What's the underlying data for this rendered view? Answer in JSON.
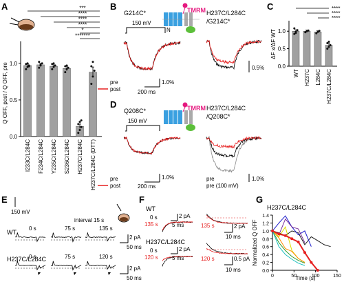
{
  "panels": {
    "A": {
      "label": "A",
      "ylabel": "Q OFF, post / Q OFF, pre",
      "yticks": [
        "0.0",
        "0.5",
        "1.0"
      ],
      "sig": [
        "***",
        "****",
        "****",
        "****",
        "*",
        "*******"
      ]
    },
    "B": {
      "label": "B",
      "left_title": "G214C*",
      "right_title_1": "H237C/L284C",
      "right_title_2": "/G214C*",
      "voltage": "150 mV",
      "dye": "TMRM",
      "n_label": "N",
      "pre": "pre",
      "post": "post",
      "time_scale": "200 ms",
      "scale_left": "1.0%",
      "scale_right": "0.5%"
    },
    "C": {
      "label": "C",
      "ylabel": "ΔF x/ΔF WT",
      "yticks": [
        "0.0",
        "0.5",
        "1.0"
      ],
      "sig": [
        "****",
        "****",
        "****"
      ]
    },
    "D": {
      "label": "D",
      "left_title": "Q208C*",
      "right_title_1": "H237C/L284C",
      "right_title_2": "/Q208C*",
      "voltage": "150 mV",
      "dye": "TMRM",
      "pre": "pre",
      "post": "post",
      "post_right": "pre (100 mV)",
      "time_scale": "200 ms",
      "scale_left": "1.0%",
      "scale_right": "1.0%"
    },
    "E": {
      "label": "E",
      "voltage": "150 mV",
      "interval": "interval 15 s",
      "wt": "WT",
      "mut": "H237C/L284C",
      "wt_times": [
        "0 s",
        "75 s",
        "135 s"
      ],
      "mut_times": [
        "0 s",
        "75 s",
        "120 s"
      ],
      "scale_pa": "2 pA",
      "scale_ms": "50 ms"
    },
    "F": {
      "label": "F",
      "wt": "WT",
      "mut": "H237C/L284C",
      "wt_left_t1": "0 s",
      "wt_left_t2": "135 s",
      "wt_right_t": "135 s",
      "mut_left_t1": "0 s",
      "mut_left_t2": "120 s",
      "mut_right_t": "120 s",
      "scale_pa_2": "2 pA",
      "scale_pa_05": "0.5 pA",
      "scale_5ms": "5 ms",
      "scale_10ms": "10 ms"
    },
    "G": {
      "label": "G",
      "title": "H237C/L284C",
      "ylabel": "Normalized Q OFF",
      "xlabel": "Time (s)"
    }
  },
  "chart_data": [
    {
      "panel": "A",
      "type": "bar",
      "categories": [
        "I233C/L284C",
        "F234C/L284C",
        "Y235C/L284C",
        "S236C/L284C",
        "H237C/L284C",
        "H237C/L284C (DTT)"
      ],
      "values": [
        0.97,
        0.98,
        0.96,
        0.93,
        0.14,
        0.88
      ],
      "errors": [
        0.02,
        0.02,
        0.02,
        0.03,
        0.03,
        0.07
      ],
      "ylim": [
        0,
        1.3
      ],
      "yticks": [
        0,
        0.5,
        1.0
      ],
      "points": [
        [
          0.92,
          0.95,
          0.97,
          0.99,
          1.0,
          0.96
        ],
        [
          0.94,
          0.97,
          1.0,
          1.02,
          0.98
        ],
        [
          0.92,
          0.95,
          0.97,
          0.99,
          1.0
        ],
        [
          0.88,
          0.92,
          0.94,
          0.96,
          0.97
        ],
        [
          0.05,
          0.09,
          0.13,
          0.17,
          0.2,
          0.22
        ],
        [
          0.72,
          0.82,
          0.9,
          0.96,
          1.02
        ]
      ]
    },
    {
      "panel": "C",
      "type": "bar",
      "categories": [
        "WT",
        "H237C",
        "L284C",
        "H237C/L284C"
      ],
      "values": [
        1.0,
        1.0,
        0.98,
        0.6
      ],
      "errors": [
        0.04,
        0.03,
        0.03,
        0.05
      ],
      "ylim": [
        0,
        1.3
      ],
      "yticks": [
        0,
        0.5,
        1.0
      ],
      "points": [
        [
          0.92,
          0.98,
          1.03,
          1.08,
          0.95
        ],
        [
          0.97,
          1.0,
          1.02
        ],
        [
          0.94,
          0.98,
          1.01
        ],
        [
          0.5,
          0.55,
          0.6,
          0.66,
          0.7
        ]
      ]
    },
    {
      "panel": "G",
      "type": "line",
      "xlim": [
        0,
        150
      ],
      "ylim": [
        0,
        1.4
      ],
      "xticks": [
        0,
        50,
        100,
        150
      ],
      "yticks": [
        0,
        0.2,
        0.4,
        0.6,
        0.8,
        1.0,
        1.2,
        1.4
      ],
      "series": [
        {
          "color": "#1a1a1a",
          "x": [
            0,
            15,
            30,
            45,
            60,
            75,
            90,
            105,
            120,
            135
          ],
          "y": [
            1.0,
            0.95,
            0.88,
            1.0,
            0.95,
            0.65,
            0.85,
            0.75,
            0.65,
            0.6
          ]
        },
        {
          "color": "#1d1dcc",
          "x": [
            0,
            15,
            30,
            45,
            60,
            75,
            90
          ],
          "y": [
            1.0,
            1.2,
            1.38,
            1.1,
            0.9,
            1.0,
            0.6
          ]
        },
        {
          "color": "#7a2f99",
          "x": [
            0,
            15,
            30,
            45,
            60,
            75
          ],
          "y": [
            1.0,
            0.9,
            1.3,
            1.1,
            1.05,
            0.7
          ]
        },
        {
          "color": "#dddd00",
          "x": [
            0,
            15,
            30,
            45,
            60,
            75
          ],
          "y": [
            1.0,
            0.85,
            1.1,
            0.5,
            0.3,
            0.2
          ]
        },
        {
          "color": "#ff8c00",
          "x": [
            0,
            15,
            30,
            45,
            60,
            75
          ],
          "y": [
            1.0,
            0.82,
            0.55,
            0.48,
            0.3,
            0.2
          ]
        },
        {
          "color": "#2e9e2e",
          "x": [
            0,
            15,
            30,
            45,
            60,
            75
          ],
          "y": [
            1.0,
            0.7,
            0.5,
            0.35,
            0.25,
            0.18
          ]
        },
        {
          "color": "#20c0c0",
          "x": [
            0,
            15,
            30,
            45,
            60,
            75
          ],
          "y": [
            1.0,
            0.6,
            0.4,
            0.28,
            0.18,
            0.12
          ]
        },
        {
          "color": "#e62020",
          "x": [
            0,
            15,
            30,
            45,
            60,
            75,
            90,
            105
          ],
          "y": [
            1.0,
            0.92,
            0.88,
            0.8,
            0.72,
            0.45,
            0.2,
            0.0
          ]
        }
      ]
    }
  ]
}
